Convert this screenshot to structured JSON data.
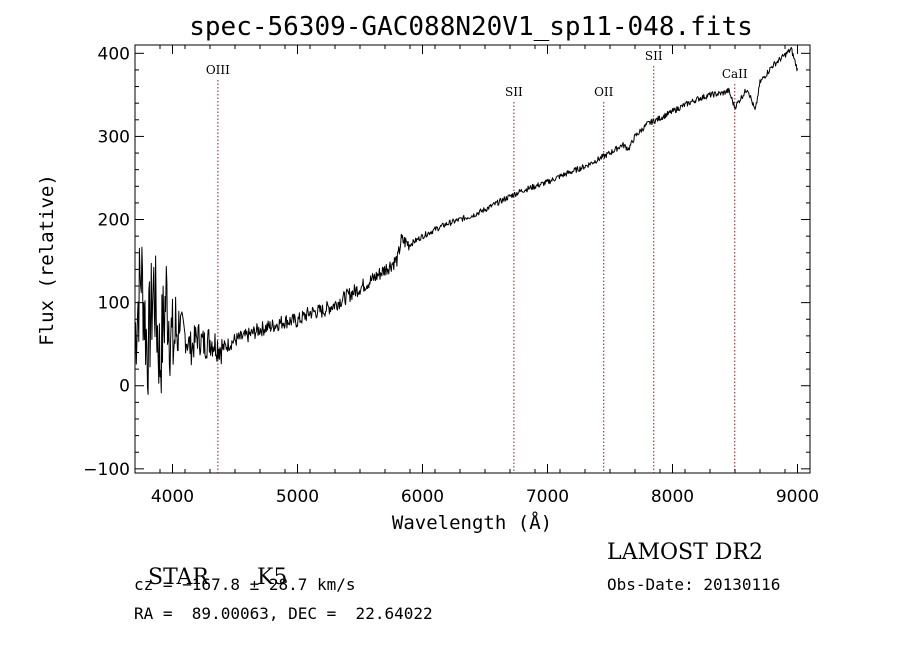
{
  "chart_data": {
    "type": "line",
    "title": "spec-56309-GAC088N20V1_sp11-048.fits",
    "xlabel": "Wavelength (Å)",
    "ylabel": "Flux (relative)",
    "xlim": [
      3700,
      9100
    ],
    "ylim": [
      -105,
      410
    ],
    "x_ticks": [
      4000,
      5000,
      6000,
      7000,
      8000,
      9000
    ],
    "y_ticks": [
      -100,
      0,
      100,
      200,
      300,
      400
    ],
    "grid": false,
    "series": [
      {
        "x": [
          3700,
          3750,
          3800,
          3850,
          3900,
          3950,
          4000,
          4050,
          4100,
          4150,
          4200,
          4250,
          4300,
          4350,
          4400,
          4500,
          4600,
          4700,
          4800,
          4900,
          5000,
          5100,
          5200,
          5300,
          5400,
          5500,
          5600,
          5700,
          5800,
          5830,
          5900,
          6000,
          6100,
          6200,
          6300,
          6400,
          6500,
          6600,
          6700,
          6800,
          6900,
          7000,
          7100,
          7200,
          7300,
          7400,
          7500,
          7600,
          7650,
          7700,
          7800,
          7900,
          8000,
          8100,
          8200,
          8300,
          8400,
          8450,
          8498,
          8542,
          8600,
          8662,
          8700,
          8800,
          8900,
          8950,
          9000
        ],
        "y": [
          60,
          140,
          40,
          120,
          30,
          110,
          45,
          80,
          60,
          45,
          60,
          50,
          55,
          50,
          45,
          55,
          60,
          68,
          72,
          78,
          78,
          88,
          90,
          98,
          108,
          118,
          128,
          140,
          152,
          175,
          170,
          180,
          188,
          195,
          200,
          205,
          212,
          220,
          228,
          235,
          240,
          245,
          252,
          258,
          264,
          272,
          280,
          290,
          285,
          300,
          315,
          322,
          330,
          338,
          345,
          350,
          352,
          355,
          335,
          345,
          358,
          330,
          365,
          385,
          398,
          405,
          380
        ]
      }
    ],
    "emission_lines": [
      {
        "label": "OIII",
        "wavelength": 4363
      },
      {
        "label": "SII",
        "wavelength": 6731
      },
      {
        "label": "OII",
        "wavelength": 7450
      },
      {
        "label": "SII",
        "wavelength": 7850
      },
      {
        "label": "CaII",
        "wavelength": 8498
      }
    ]
  },
  "info": {
    "class_label": "STAR",
    "subclass_label": "K5",
    "cz_line": "cz = −167.8 ± 28.7 km/s",
    "coord_line": "RA =  89.00063, DEC =  22.64022",
    "survey": "LAMOST DR2",
    "obs_date": "Obs-Date: 20130116"
  }
}
